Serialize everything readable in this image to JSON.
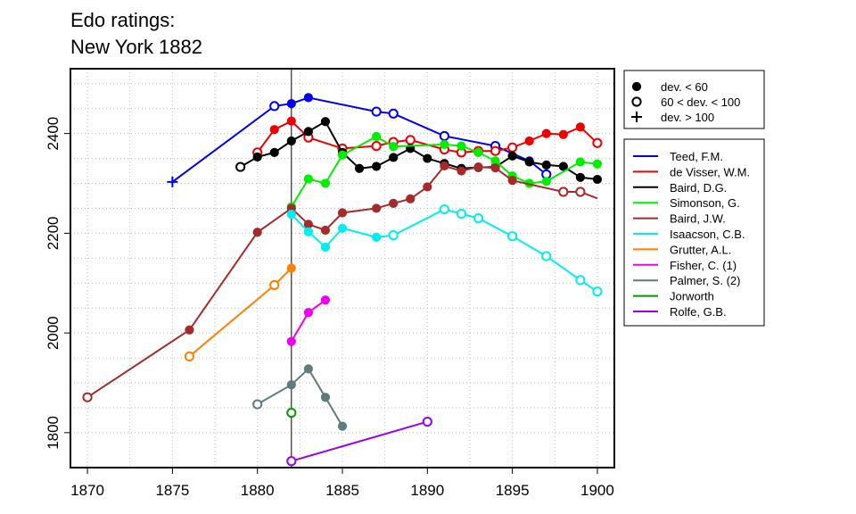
{
  "chart_data": {
    "type": "line",
    "title": [
      "Edo ratings:",
      "New York 1882"
    ],
    "xlim": [
      1869,
      1901
    ],
    "ylim": [
      1730,
      2530
    ],
    "x_ticks": [
      1870,
      1875,
      1880,
      1885,
      1890,
      1895,
      1900
    ],
    "y_ticks": [
      1800,
      2000,
      2200,
      2400
    ],
    "grid": true,
    "reference_x": 1882,
    "marker_legend": [
      {
        "symbol": "filled-circle",
        "label": "dev. < 60"
      },
      {
        "symbol": "open-circle",
        "label": "60 < dev. < 100"
      },
      {
        "symbol": "plus",
        "label": "dev. > 100"
      }
    ],
    "series": [
      {
        "name": "Teed, F.M.",
        "color": "#0000ee",
        "points": [
          [
            1875,
            2303,
            "p"
          ],
          [
            1881,
            2455,
            "o"
          ],
          [
            1882,
            2460,
            "f"
          ],
          [
            1883,
            2472,
            "f"
          ],
          [
            1887,
            2444,
            "o"
          ],
          [
            1888,
            2440,
            "o"
          ],
          [
            1891,
            2395,
            "o"
          ],
          [
            1894,
            2375,
            "o"
          ],
          [
            1896,
            2345,
            "f"
          ],
          [
            1897,
            2318,
            "o"
          ]
        ]
      },
      {
        "name": "de Visser, W.M.",
        "color": "#ee0000",
        "points": [
          [
            1880,
            2362,
            "o"
          ],
          [
            1881,
            2408,
            "f"
          ],
          [
            1882,
            2425,
            "f"
          ],
          [
            1883,
            2392,
            "o"
          ],
          [
            1885,
            2370,
            "o"
          ],
          [
            1887,
            2375,
            "o"
          ],
          [
            1888,
            2383,
            "o"
          ],
          [
            1889,
            2387,
            "o"
          ],
          [
            1891,
            2368,
            "o"
          ],
          [
            1892,
            2362,
            "o"
          ],
          [
            1893,
            2365,
            "o"
          ],
          [
            1894,
            2365,
            "o"
          ],
          [
            1895,
            2372,
            "o"
          ],
          [
            1896,
            2385,
            "f"
          ],
          [
            1897,
            2400,
            "f"
          ],
          [
            1898,
            2398,
            "f"
          ],
          [
            1899,
            2413,
            "f"
          ],
          [
            1900,
            2381,
            "o"
          ]
        ]
      },
      {
        "name": "Baird, D.G.",
        "color": "#000000",
        "points": [
          [
            1879,
            2333,
            "o"
          ],
          [
            1880,
            2353,
            "f"
          ],
          [
            1881,
            2362,
            "f"
          ],
          [
            1882,
            2385,
            "f"
          ],
          [
            1883,
            2404,
            "f"
          ],
          [
            1884,
            2424,
            "f"
          ],
          [
            1885,
            2362,
            "f"
          ],
          [
            1886,
            2330,
            "f"
          ],
          [
            1887,
            2334,
            "f"
          ],
          [
            1888,
            2352,
            "f"
          ],
          [
            1889,
            2370,
            "f"
          ],
          [
            1890,
            2350,
            "f"
          ],
          [
            1891,
            2340,
            "f"
          ],
          [
            1892,
            2330,
            "f"
          ],
          [
            1893,
            2332,
            "f"
          ],
          [
            1894,
            2333,
            "f"
          ],
          [
            1895,
            2355,
            "f"
          ],
          [
            1896,
            2343,
            "f"
          ],
          [
            1897,
            2337,
            "f"
          ],
          [
            1898,
            2334,
            "f"
          ],
          [
            1899,
            2312,
            "f"
          ],
          [
            1900,
            2308,
            "f"
          ]
        ]
      },
      {
        "name": "Simonson, G.",
        "color": "#00ee00",
        "points": [
          [
            1882,
            2253,
            "f"
          ],
          [
            1883,
            2309,
            "f"
          ],
          [
            1884,
            2300,
            "f"
          ],
          [
            1885,
            2357,
            "f"
          ],
          [
            1887,
            2394,
            "f"
          ],
          [
            1888,
            2374,
            "f"
          ],
          [
            1891,
            2378,
            "f"
          ],
          [
            1892,
            2375,
            "f"
          ],
          [
            1893,
            2362,
            "f"
          ],
          [
            1894,
            2345,
            "f"
          ],
          [
            1895,
            2315,
            "f"
          ],
          [
            1896,
            2300,
            "f"
          ],
          [
            1897,
            2304,
            "f"
          ],
          [
            1899,
            2343,
            "f"
          ],
          [
            1900,
            2339,
            "f"
          ]
        ]
      },
      {
        "name": "Baird, J.W.",
        "color": "#a52a2a",
        "points": [
          [
            1870,
            1871,
            "o"
          ],
          [
            1876,
            2006,
            "f"
          ],
          [
            1880,
            2202,
            "f"
          ],
          [
            1882,
            2250,
            "f"
          ],
          [
            1883,
            2218,
            "f"
          ],
          [
            1884,
            2206,
            "f"
          ],
          [
            1885,
            2241,
            "f"
          ],
          [
            1887,
            2250,
            "f"
          ],
          [
            1888,
            2260,
            "f"
          ],
          [
            1889,
            2269,
            "f"
          ],
          [
            1890,
            2293,
            "f"
          ],
          [
            1891,
            2335,
            "f"
          ],
          [
            1892,
            2325,
            "f"
          ],
          [
            1893,
            2333,
            "f"
          ],
          [
            1894,
            2331,
            "f"
          ],
          [
            1895,
            2306,
            "f"
          ],
          [
            1898,
            2283,
            "o"
          ],
          [
            1899,
            2283,
            "o"
          ],
          [
            1900,
            2270,
            "n"
          ]
        ]
      },
      {
        "name": "Isaacson, C.B.",
        "color": "#00eeee",
        "points": [
          [
            1882,
            2238,
            "f"
          ],
          [
            1883,
            2203,
            "f"
          ],
          [
            1884,
            2172,
            "f"
          ],
          [
            1885,
            2210,
            "f"
          ],
          [
            1887,
            2192,
            "f"
          ],
          [
            1888,
            2196,
            "o"
          ],
          [
            1891,
            2248,
            "o"
          ],
          [
            1892,
            2239,
            "o"
          ],
          [
            1893,
            2230,
            "o"
          ],
          [
            1895,
            2194,
            "o"
          ],
          [
            1897,
            2154,
            "o"
          ],
          [
            1899,
            2106,
            "o"
          ],
          [
            1900,
            2083,
            "o"
          ]
        ]
      },
      {
        "name": "Grutter, A.L.",
        "color": "#ff7f00",
        "points": [
          [
            1876,
            1953,
            "o"
          ],
          [
            1881,
            2096,
            "o"
          ],
          [
            1882,
            2130,
            "f"
          ]
        ]
      },
      {
        "name": "Fisher, C. (1)",
        "color": "#ee00ee",
        "points": [
          [
            1882,
            1983,
            "f"
          ],
          [
            1883,
            2041,
            "f"
          ],
          [
            1884,
            2066,
            "f"
          ]
        ]
      },
      {
        "name": "Palmer, S. (2)",
        "color": "#607b7b",
        "points": [
          [
            1880,
            1857,
            "o"
          ],
          [
            1882,
            1896,
            "f"
          ],
          [
            1883,
            1928,
            "f"
          ],
          [
            1884,
            1871,
            "f"
          ],
          [
            1885,
            1813,
            "f"
          ]
        ]
      },
      {
        "name": "Jorworth",
        "color": "#009900",
        "points": [
          [
            1882,
            1840,
            "o"
          ]
        ]
      },
      {
        "name": "Rolfe, G.B.",
        "color": "#9a00ee",
        "points": [
          [
            1882,
            1743,
            "o"
          ],
          [
            1890,
            1822,
            "o"
          ]
        ]
      }
    ]
  }
}
